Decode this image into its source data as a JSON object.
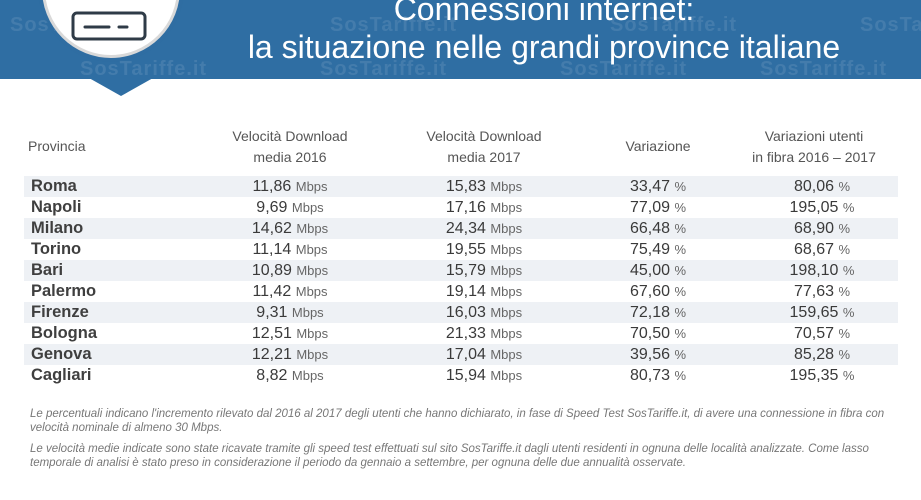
{
  "header": {
    "title_line1": "Connessioni internet:",
    "title_line2": "la situazione nelle grandi province italiane",
    "watermark": "SosTariffe.it"
  },
  "table": {
    "headers": {
      "provincia": "Provincia",
      "v2016_l1": "Velocità Download",
      "v2016_l2": "media 2016",
      "v2017_l1": "Velocità Download",
      "v2017_l2": "media 2017",
      "variazione": "Variazione",
      "fibra_l1": "Variazioni utenti",
      "fibra_l2": "in fibra 2016 – 2017"
    },
    "speed_unit": "Mbps",
    "pct_unit": "%",
    "rows": [
      {
        "provincia": "Roma",
        "v2016": "11,86",
        "v2017": "15,83",
        "variazione": "33,47",
        "fibra": "80,06"
      },
      {
        "provincia": "Napoli",
        "v2016": "9,69",
        "v2017": "17,16",
        "variazione": "77,09",
        "fibra": "195,05"
      },
      {
        "provincia": "Milano",
        "v2016": "14,62",
        "v2017": "24,34",
        "variazione": "66,48",
        "fibra": "68,90"
      },
      {
        "provincia": "Torino",
        "v2016": "11,14",
        "v2017": "19,55",
        "variazione": "75,49",
        "fibra": "68,67"
      },
      {
        "provincia": "Bari",
        "v2016": "10,89",
        "v2017": "15,79",
        "variazione": "45,00",
        "fibra": "198,10"
      },
      {
        "provincia": "Palermo",
        "v2016": "11,42",
        "v2017": "19,14",
        "variazione": "67,60",
        "fibra": "77,63"
      },
      {
        "provincia": "Firenze",
        "v2016": "9,31",
        "v2017": "16,03",
        "variazione": "72,18",
        "fibra": "159,65"
      },
      {
        "provincia": "Bologna",
        "v2016": "12,51",
        "v2017": "21,33",
        "variazione": "70,50",
        "fibra": "70,57"
      },
      {
        "provincia": "Genova",
        "v2016": "12,21",
        "v2017": "17,04",
        "variazione": "39,56",
        "fibra": "85,28"
      },
      {
        "provincia": "Cagliari",
        "v2016": "8,82",
        "v2017": "15,94",
        "variazione": "80,73",
        "fibra": "195,35"
      }
    ]
  },
  "notes": {
    "note1": "Le percentuali indicano l'incremento rilevato dal 2016 al 2017 degli utenti che hanno dichiarato, in fase di Speed Test SosTariffe.it, di avere una connessione in fibra con velocità nominale di almeno 30 Mbps.",
    "note2": "Le velocità medie indicate sono state ricavate tramite gli speed test effettuati sul sito SosTariffe.it dagli utenti residenti in ognuna delle località analizzate. Come lasso temporale di analisi è stato preso in considerazione il periodo da gennaio a settembre, per ognuna delle due annualità osservate."
  },
  "colors": {
    "banner": "#2f6ea3",
    "row_alt": "#eef1f5"
  },
  "icons": {
    "badge": "router-icon"
  }
}
